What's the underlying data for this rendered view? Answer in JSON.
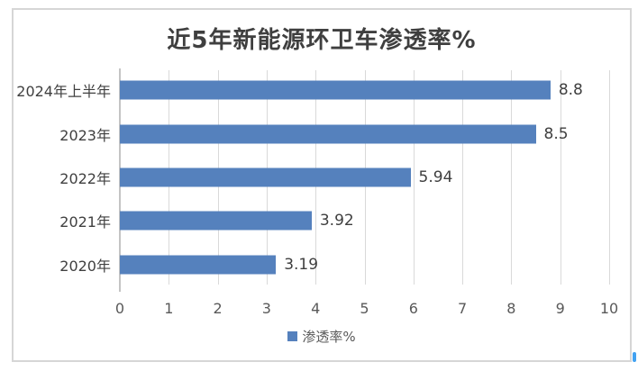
{
  "chart_data": {
    "type": "bar",
    "orientation": "horizontal",
    "title": "近5年新能源环卫车渗透率%",
    "categories": [
      "2024年上半年",
      "2023年",
      "2022年",
      "2021年",
      "2020年"
    ],
    "values": [
      8.8,
      8.5,
      5.94,
      3.92,
      3.19
    ],
    "value_labels": [
      "8.8",
      "8.5",
      "5.94",
      "3.92",
      "3.19"
    ],
    "xlabel": "",
    "ylabel": "",
    "xlim": [
      0,
      10
    ],
    "x_ticks": [
      0,
      1,
      2,
      3,
      4,
      5,
      6,
      7,
      8,
      9,
      10
    ],
    "grid": true,
    "legend": {
      "label": "渗透率%",
      "position": "bottom"
    },
    "colors": {
      "bar": "#5581bd",
      "gridline": "#d9d9d9",
      "axis_line": "#c4c4c4",
      "title_text": "#3f3f3f",
      "label_text": "#404040",
      "tick_text": "#595959",
      "frame_border": "#d6d6d6",
      "cursor_artifact": "#42a2f1"
    }
  }
}
